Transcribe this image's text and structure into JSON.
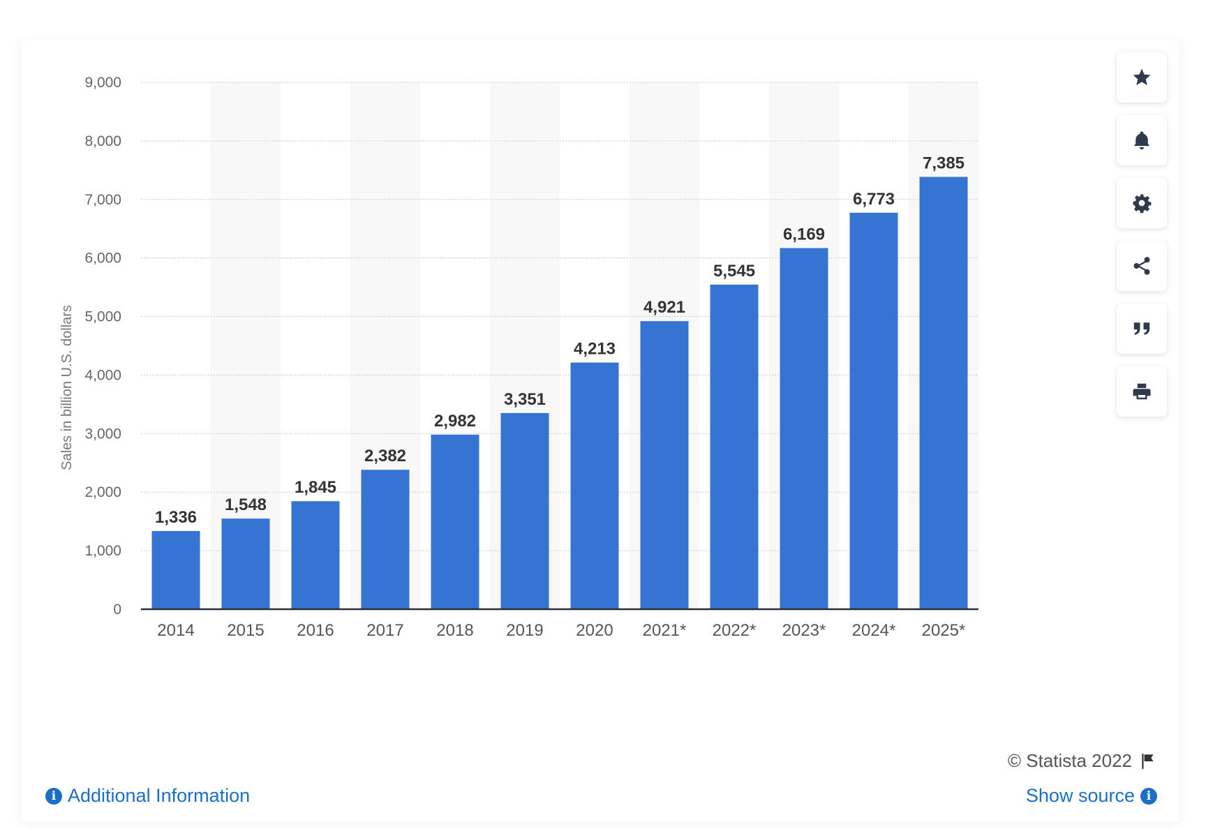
{
  "chart_data": {
    "type": "bar",
    "categories": [
      "2014",
      "2015",
      "2016",
      "2017",
      "2018",
      "2019",
      "2020",
      "2021*",
      "2022*",
      "2023*",
      "2024*",
      "2025*"
    ],
    "values": [
      1336,
      1548,
      1845,
      2382,
      2982,
      3351,
      4213,
      4921,
      5545,
      6169,
      6773,
      7385
    ],
    "value_labels": [
      "1,336",
      "1,548",
      "1,845",
      "2,382",
      "2,982",
      "3,351",
      "4,213",
      "4,921",
      "5,545",
      "6,169",
      "6,773",
      "7,385"
    ],
    "ylabel": "Sales in billion U.S. dollars",
    "xlabel": "",
    "ylim": [
      0,
      9000
    ],
    "yticks": [
      0,
      1000,
      2000,
      3000,
      4000,
      5000,
      6000,
      7000,
      8000,
      9000
    ],
    "ytick_labels": [
      "0",
      "1,000",
      "2,000",
      "3,000",
      "4,000",
      "5,000",
      "6,000",
      "7,000",
      "8,000",
      "9,000"
    ],
    "grid": true,
    "bar_color": "#3674d4"
  },
  "toolbar": {
    "buttons": [
      {
        "name": "favorite-button",
        "icon": "star-icon"
      },
      {
        "name": "notification-button",
        "icon": "bell-icon"
      },
      {
        "name": "settings-button",
        "icon": "gear-icon"
      },
      {
        "name": "share-button",
        "icon": "share-icon"
      },
      {
        "name": "cite-button",
        "icon": "quote-icon"
      },
      {
        "name": "print-button",
        "icon": "print-icon"
      }
    ]
  },
  "footer": {
    "copyright": "© Statista 2022",
    "additional_info": "Additional Information",
    "show_source": "Show source"
  },
  "colors": {
    "accent": "#1c6fc9",
    "bar": "#3674d4"
  }
}
